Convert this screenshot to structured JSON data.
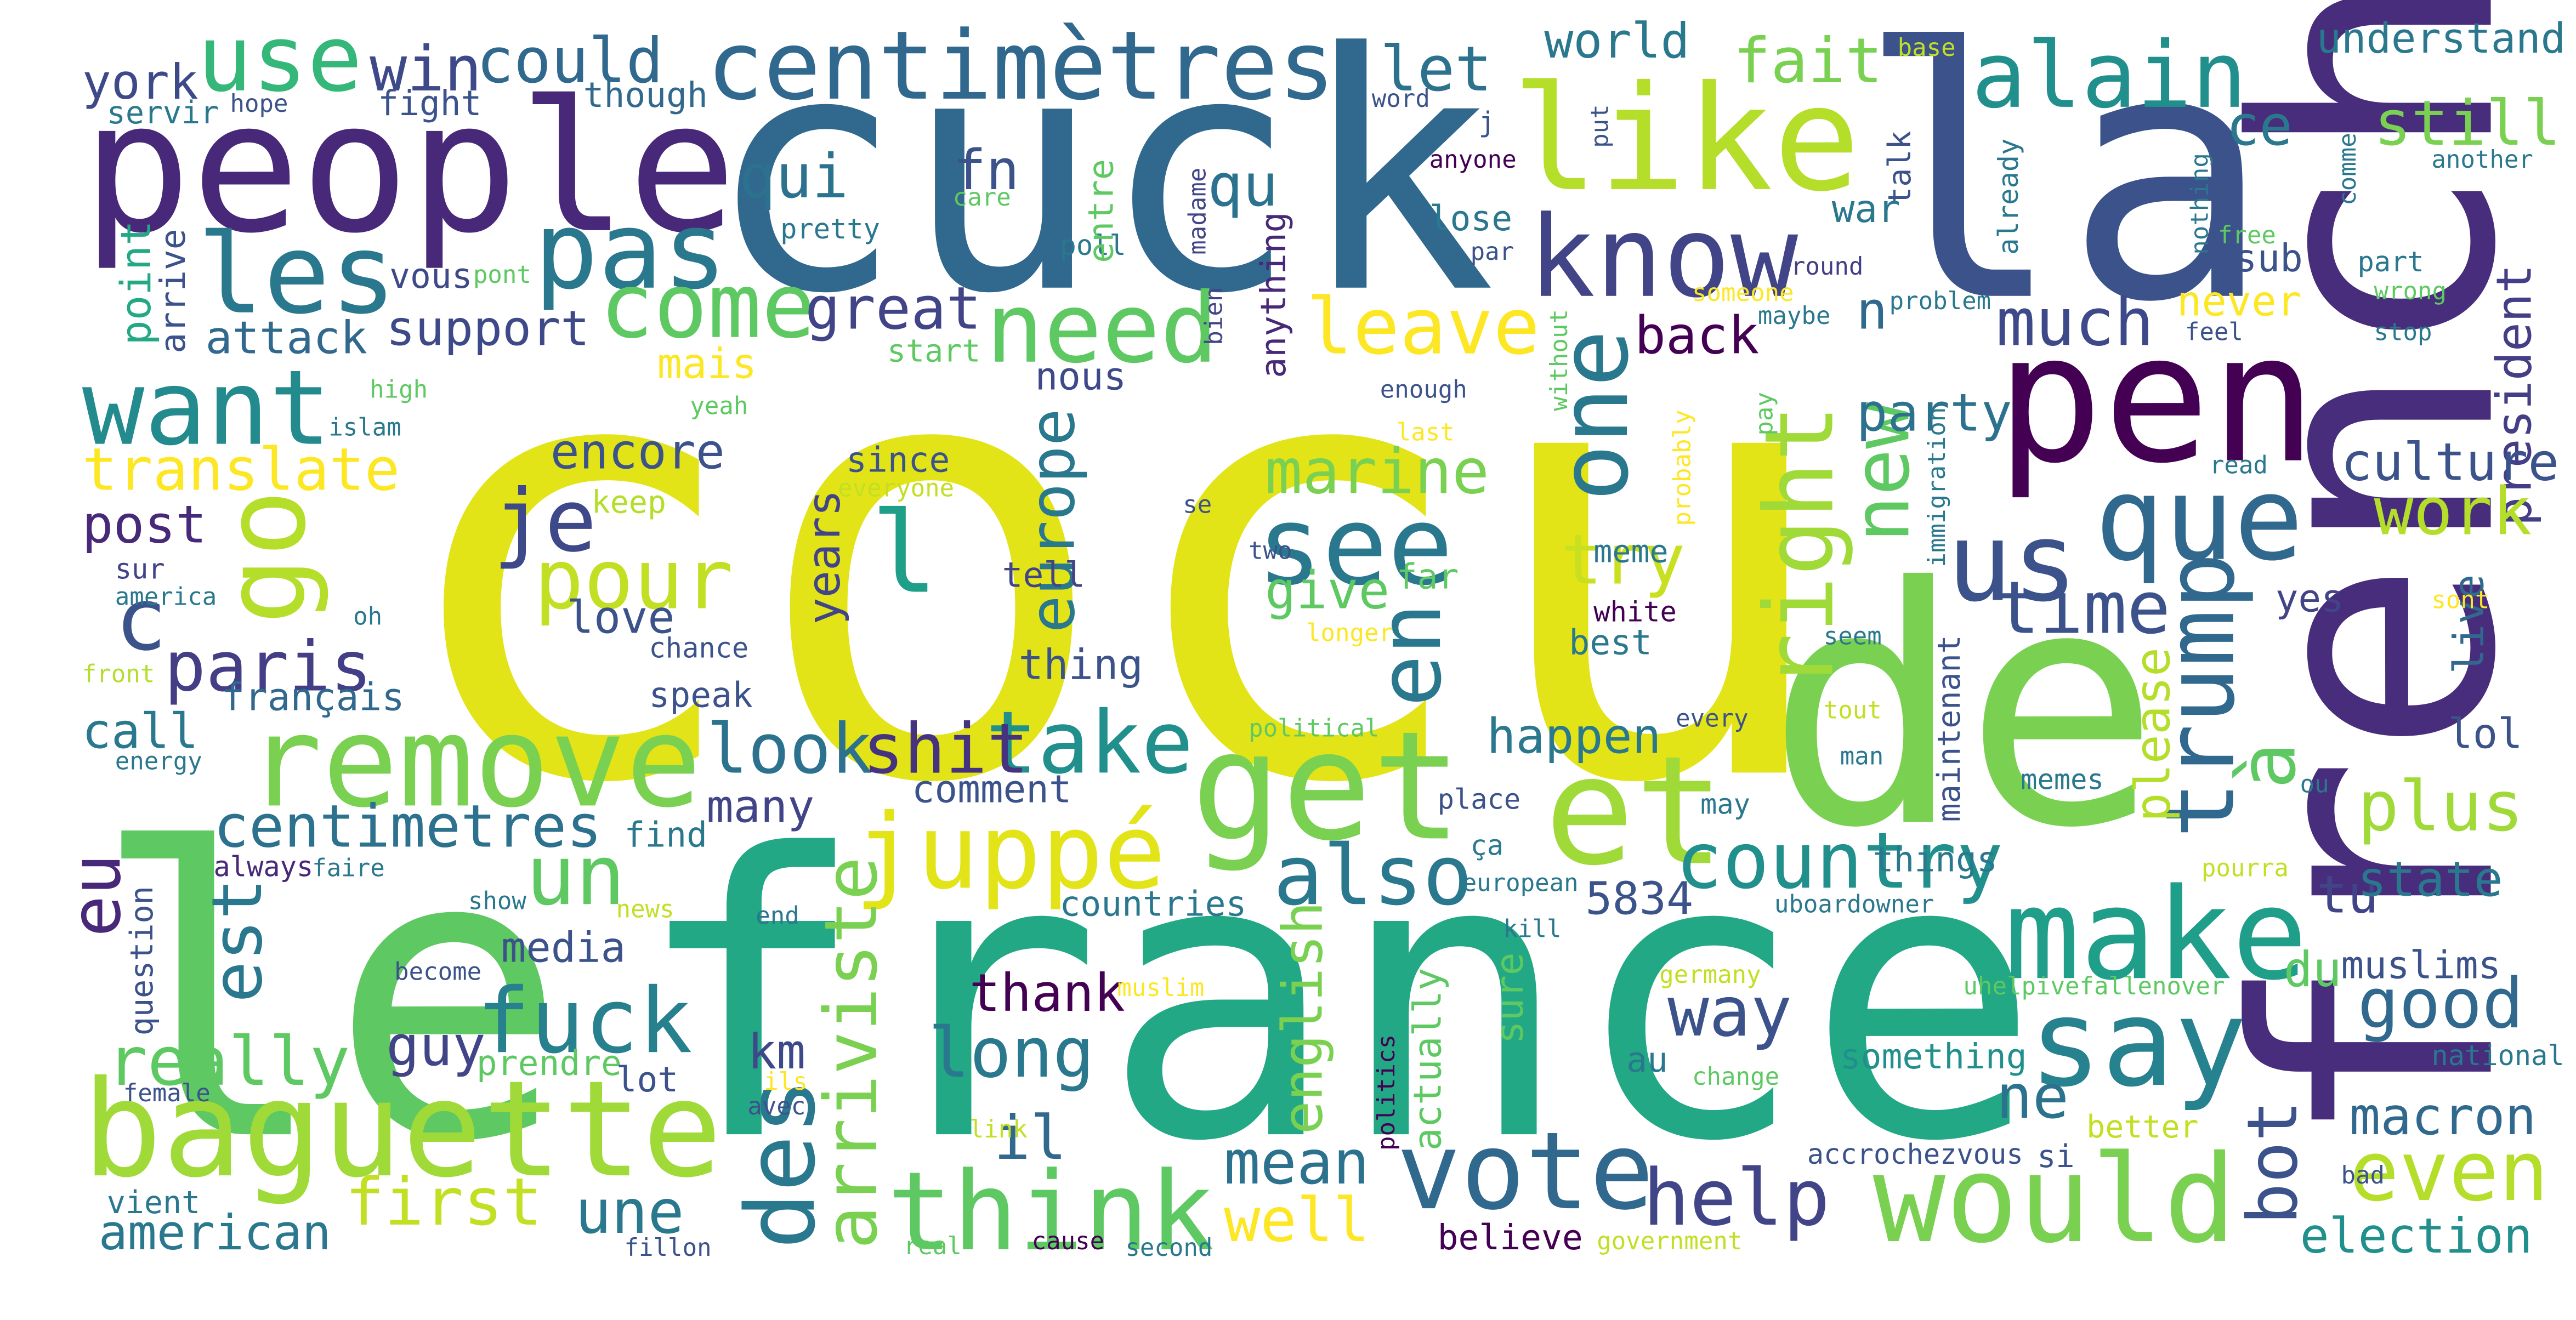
{
  "words": [
    {
      "text": "cocu",
      "color": "#e2e418"
    },
    {
      "text": "france",
      "color": "#22a884"
    },
    {
      "text": "cuck",
      "color": "#31688e"
    },
    {
      "text": "le",
      "color": "#5ec962"
    },
    {
      "text": "la",
      "color": "#3b528b"
    },
    {
      "text": "de",
      "color": "#7ad151"
    },
    {
      "text": "french",
      "color": "#472d7b"
    },
    {
      "text": "people",
      "color": "#482878"
    },
    {
      "text": "like",
      "color": "#b5de2b"
    },
    {
      "text": "pen",
      "color": "#440154"
    },
    {
      "text": "get",
      "color": "#7ad151"
    },
    {
      "text": "et",
      "color": "#a0da39"
    },
    {
      "text": "baguette",
      "color": "#a0da39"
    },
    {
      "text": "remove",
      "color": "#7ad151"
    },
    {
      "text": "think",
      "color": "#5ec962"
    },
    {
      "text": "would",
      "color": "#7ad151"
    },
    {
      "text": "say",
      "color": "#26828e"
    },
    {
      "text": "make",
      "color": "#1f9e89"
    },
    {
      "text": "vote",
      "color": "#31688e"
    },
    {
      "text": "know",
      "color": "#414487"
    },
    {
      "text": "want",
      "color": "#238a8d"
    },
    {
      "text": "les",
      "color": "#2a788e"
    },
    {
      "text": "pas",
      "color": "#2a788e"
    },
    {
      "text": "juppé",
      "color": "#e2e418"
    },
    {
      "text": "fuck",
      "color": "#27808e"
    },
    {
      "text": "use",
      "color": "#35b779"
    },
    {
      "text": "centimètres",
      "color": "#31688e"
    },
    {
      "text": "alain",
      "color": "#21908d"
    },
    {
      "text": "need",
      "color": "#5ec962"
    },
    {
      "text": "come",
      "color": "#5ec962"
    },
    {
      "text": "see",
      "color": "#2a788e"
    },
    {
      "text": "que",
      "color": "#31688e"
    },
    {
      "text": "us",
      "color": "#3b528b"
    },
    {
      "text": "go",
      "color": "#b5de2b"
    },
    {
      "text": "je",
      "color": "#3e4989"
    },
    {
      "text": "pour",
      "color": "#c2df23"
    },
    {
      "text": "l",
      "color": "#1f9e89"
    },
    {
      "text": "c",
      "color": "#3b528b"
    },
    {
      "text": "paris",
      "color": "#433e85"
    },
    {
      "text": "take",
      "color": "#21908d"
    },
    {
      "text": "look",
      "color": "#2c728e"
    },
    {
      "text": "shit",
      "color": "#46337f"
    },
    {
      "text": "one",
      "color": "#2a788e"
    },
    {
      "text": "right",
      "color": "#a0da39"
    },
    {
      "text": "new",
      "color": "#5ec962"
    },
    {
      "text": "en",
      "color": "#2a788e"
    },
    {
      "text": "trump",
      "color": "#31688e"
    },
    {
      "text": "à",
      "color": "#5ec962"
    },
    {
      "text": "des",
      "color": "#2a788e"
    },
    {
      "text": "arriviste",
      "color": "#7ad151"
    },
    {
      "text": "est",
      "color": "#2a788e"
    },
    {
      "text": "eu",
      "color": "#482878"
    },
    {
      "text": "un",
      "color": "#5ec962"
    },
    {
      "text": "also",
      "color": "#2a788e"
    },
    {
      "text": "country",
      "color": "#21908d"
    },
    {
      "text": "plus",
      "color": "#a0da39"
    },
    {
      "text": "good",
      "color": "#31688e"
    },
    {
      "text": "even",
      "color": "#b5de2b"
    },
    {
      "text": "help",
      "color": "#414487"
    },
    {
      "text": "really",
      "color": "#5ec962"
    },
    {
      "text": "long",
      "color": "#2a788e"
    },
    {
      "text": "way",
      "color": "#3b528b"
    },
    {
      "text": "mean",
      "color": "#2c728e"
    },
    {
      "text": "well",
      "color": "#fde725"
    },
    {
      "text": "first",
      "color": "#c2df23"
    },
    {
      "text": "une",
      "color": "#2a788e"
    },
    {
      "text": "american",
      "color": "#2a788e"
    },
    {
      "text": "centimetres",
      "color": "#2c728e"
    },
    {
      "text": "media",
      "color": "#3b528b"
    },
    {
      "text": "guy",
      "color": "#414487"
    },
    {
      "text": "km",
      "color": "#3e4989"
    },
    {
      "text": "il",
      "color": "#31688e"
    },
    {
      "text": "english",
      "color": "#7ad151"
    },
    {
      "text": "thank",
      "color": "#440154"
    },
    {
      "text": "ne",
      "color": "#2c728e"
    },
    {
      "text": "bot",
      "color": "#3b528b"
    },
    {
      "text": "please",
      "color": "#b5de2b"
    },
    {
      "text": "tu",
      "color": "#414487"
    },
    {
      "text": "state",
      "color": "#2a788e"
    },
    {
      "text": "du",
      "color": "#5ec962"
    },
    {
      "text": "muslims",
      "color": "#3b528b"
    },
    {
      "text": "macron",
      "color": "#31688e"
    },
    {
      "text": "election",
      "color": "#21908d"
    },
    {
      "text": "national",
      "color": "#2a788e"
    },
    {
      "text": "lol",
      "color": "#3b528b"
    },
    {
      "text": "live",
      "color": "#31688e"
    },
    {
      "text": "president",
      "color": "#433e85"
    },
    {
      "text": "culture",
      "color": "#3b528b"
    },
    {
      "text": "work",
      "color": "#b5de2b"
    },
    {
      "text": "yes",
      "color": "#414487"
    },
    {
      "text": "sont",
      "color": "#fde725"
    },
    {
      "text": "time",
      "color": "#3b528b"
    },
    {
      "text": "try",
      "color": "#c8e020"
    },
    {
      "text": "marine",
      "color": "#7ad151"
    },
    {
      "text": "give",
      "color": "#5ec962"
    },
    {
      "text": "leave",
      "color": "#fde725"
    },
    {
      "text": "much",
      "color": "#3e4989"
    },
    {
      "text": "back",
      "color": "#440154"
    },
    {
      "text": "n",
      "color": "#31688e"
    },
    {
      "text": "party",
      "color": "#2c728e"
    },
    {
      "text": "never",
      "color": "#fde725"
    },
    {
      "text": "sub",
      "color": "#3b528b"
    },
    {
      "text": "still",
      "color": "#7ad151"
    },
    {
      "text": "ce",
      "color": "#2a788e"
    },
    {
      "text": "fait",
      "color": "#7ad151"
    },
    {
      "text": "let",
      "color": "#2c728e"
    },
    {
      "text": "world",
      "color": "#2a788e"
    },
    {
      "text": "win",
      "color": "#3e4989"
    },
    {
      "text": "could",
      "color": "#31688e"
    },
    {
      "text": "york",
      "color": "#3e4989"
    },
    {
      "text": "servir",
      "color": "#2a788e"
    },
    {
      "text": "hope",
      "color": "#3b528b"
    },
    {
      "text": "fight",
      "color": "#3b528b"
    },
    {
      "text": "though",
      "color": "#31688e"
    },
    {
      "text": "qui",
      "color": "#2c728e"
    },
    {
      "text": "fn",
      "color": "#3b528b"
    },
    {
      "text": "qu",
      "color": "#2c728e"
    },
    {
      "text": "pretty",
      "color": "#2a788e"
    },
    {
      "text": "care",
      "color": "#5ec962"
    },
    {
      "text": "madame",
      "color": "#414487"
    },
    {
      "text": "poll",
      "color": "#2a788e"
    },
    {
      "text": "entre",
      "color": "#5ec962"
    },
    {
      "text": "point",
      "color": "#22a884"
    },
    {
      "text": "arrive",
      "color": "#3b528b"
    },
    {
      "text": "vous",
      "color": "#3e4989"
    },
    {
      "text": "pont",
      "color": "#5ec962"
    },
    {
      "text": "attack",
      "color": "#31688e"
    },
    {
      "text": "support",
      "color": "#3e4989"
    },
    {
      "text": "great",
      "color": "#414487"
    },
    {
      "text": "start",
      "color": "#5ec962"
    },
    {
      "text": "mais",
      "color": "#fde725"
    },
    {
      "text": "bien",
      "color": "#414487"
    },
    {
      "text": "nous",
      "color": "#3e4989"
    },
    {
      "text": "anything",
      "color": "#482878"
    },
    {
      "text": "encore",
      "color": "#3b528b"
    },
    {
      "text": "translate",
      "color": "#fde725"
    },
    {
      "text": "post",
      "color": "#482878"
    },
    {
      "text": "keep",
      "color": "#b5de2b"
    },
    {
      "text": "since",
      "color": "#3b528b"
    },
    {
      "text": "everyone",
      "color": "#c2df23"
    },
    {
      "text": "europe",
      "color": "#2a788e"
    },
    {
      "text": "years",
      "color": "#414487"
    },
    {
      "text": "tell",
      "color": "#414487"
    },
    {
      "text": "se",
      "color": "#3b528b"
    },
    {
      "text": "two",
      "color": "#3b528b"
    },
    {
      "text": "meme",
      "color": "#2a788e"
    },
    {
      "text": "far",
      "color": "#5ec962"
    },
    {
      "text": "white",
      "color": "#440154"
    },
    {
      "text": "longer",
      "color": "#fde725"
    },
    {
      "text": "best",
      "color": "#2a788e"
    },
    {
      "text": "thing",
      "color": "#3b528b"
    },
    {
      "text": "love",
      "color": "#3b528b"
    },
    {
      "text": "chance",
      "color": "#3b528b"
    },
    {
      "text": "speak",
      "color": "#3b528b"
    },
    {
      "text": "français",
      "color": "#31688e"
    },
    {
      "text": "call",
      "color": "#2a788e"
    },
    {
      "text": "energy",
      "color": "#2a788e"
    },
    {
      "text": "sur",
      "color": "#414487"
    },
    {
      "text": "america",
      "color": "#2a788e"
    },
    {
      "text": "oh",
      "color": "#2a788e"
    },
    {
      "text": "front",
      "color": "#b5de2b"
    },
    {
      "text": "islam",
      "color": "#2a788e"
    },
    {
      "text": "high",
      "color": "#5ec962"
    },
    {
      "text": "yeah",
      "color": "#5ec962"
    },
    {
      "text": "happen",
      "color": "#2a788e"
    },
    {
      "text": "many",
      "color": "#414487"
    },
    {
      "text": "comment",
      "color": "#3b528b"
    },
    {
      "text": "political",
      "color": "#5ec962"
    },
    {
      "text": "every",
      "color": "#3b528b"
    },
    {
      "text": "man",
      "color": "#2a788e"
    },
    {
      "text": "tout",
      "color": "#c2df23"
    },
    {
      "text": "maintenant",
      "color": "#3b528b"
    },
    {
      "text": "memes",
      "color": "#2a788e"
    },
    {
      "text": "ou",
      "color": "#2a788e"
    },
    {
      "text": "seem",
      "color": "#2a788e"
    },
    {
      "text": "immigration",
      "color": "#2a788e"
    },
    {
      "text": "probably",
      "color": "#fde725"
    },
    {
      "text": "pay",
      "color": "#5ec962"
    },
    {
      "text": "enough",
      "color": "#3b528b"
    },
    {
      "text": "last",
      "color": "#fde725"
    },
    {
      "text": "without",
      "color": "#5ec962"
    },
    {
      "text": "someone",
      "color": "#fde725"
    },
    {
      "text": "maybe",
      "color": "#2a788e"
    },
    {
      "text": "problem",
      "color": "#2a788e"
    },
    {
      "text": "round",
      "color": "#433e85"
    },
    {
      "text": "talk",
      "color": "#3b528b"
    },
    {
      "text": "war",
      "color": "#2a788e"
    },
    {
      "text": "already",
      "color": "#2a788e"
    },
    {
      "text": "nothing",
      "color": "#2a788e"
    },
    {
      "text": "free",
      "color": "#5ec962"
    },
    {
      "text": "part",
      "color": "#2a788e"
    },
    {
      "text": "wrong",
      "color": "#5ec962"
    },
    {
      "text": "feel",
      "color": "#3b528b"
    },
    {
      "text": "stop",
      "color": "#2a788e"
    },
    {
      "text": "comme",
      "color": "#2a788e"
    },
    {
      "text": "another",
      "color": "#2a788e"
    },
    {
      "text": "understand",
      "color": "#2a788e"
    },
    {
      "text": "base",
      "color": "#c2df23"
    },
    {
      "text": "word",
      "color": "#3b528b"
    },
    {
      "text": "j",
      "color": "#3b528b"
    },
    {
      "text": "put",
      "color": "#3b528b"
    },
    {
      "text": "anyone",
      "color": "#440154"
    },
    {
      "text": "lose",
      "color": "#2a788e"
    },
    {
      "text": "par",
      "color": "#3b528b"
    },
    {
      "text": "read",
      "color": "#2a788e"
    },
    {
      "text": "5834",
      "color": "#3b528b"
    },
    {
      "text": "place",
      "color": "#3b528b"
    },
    {
      "text": "may",
      "color": "#2a788e"
    },
    {
      "text": "ça",
      "color": "#2a788e"
    },
    {
      "text": "european",
      "color": "#2a788e"
    },
    {
      "text": "find",
      "color": "#2a788e"
    },
    {
      "text": "faire",
      "color": "#2a788e"
    },
    {
      "text": "always",
      "color": "#482878"
    },
    {
      "text": "show",
      "color": "#2a788e"
    },
    {
      "text": "news",
      "color": "#c2df23"
    },
    {
      "text": "question",
      "color": "#3b528b"
    },
    {
      "text": "countries",
      "color": "#2a788e"
    },
    {
      "text": "end",
      "color": "#2a788e"
    },
    {
      "text": "kill",
      "color": "#2a788e"
    },
    {
      "text": "things",
      "color": "#2a788e"
    },
    {
      "text": "uboardowner",
      "color": "#2a788e"
    },
    {
      "text": "pourra",
      "color": "#c2df23"
    },
    {
      "text": "become",
      "color": "#3b528b"
    },
    {
      "text": "germany",
      "color": "#c2df23"
    },
    {
      "text": "sure",
      "color": "#5ec962"
    },
    {
      "text": "actually",
      "color": "#5ec962"
    },
    {
      "text": "politics",
      "color": "#440154"
    },
    {
      "text": "muslim",
      "color": "#fde725"
    },
    {
      "text": "uhelpivefallenover",
      "color": "#5ec962"
    },
    {
      "text": "female",
      "color": "#3b528b"
    },
    {
      "text": "prendre",
      "color": "#5ec962"
    },
    {
      "text": "lot",
      "color": "#3b528b"
    },
    {
      "text": "ils",
      "color": "#fde725"
    },
    {
      "text": "avec",
      "color": "#3b528b"
    },
    {
      "text": "au",
      "color": "#2a788e"
    },
    {
      "text": "change",
      "color": "#5ec962"
    },
    {
      "text": "something",
      "color": "#21908d"
    },
    {
      "text": "link",
      "color": "#c2df23"
    },
    {
      "text": "better",
      "color": "#c2df23"
    },
    {
      "text": "accrochezvous",
      "color": "#3b528b"
    },
    {
      "text": "si",
      "color": "#3b528b"
    },
    {
      "text": "bad",
      "color": "#3b528b"
    },
    {
      "text": "vient",
      "color": "#2a788e"
    },
    {
      "text": "fillon",
      "color": "#3b528b"
    },
    {
      "text": "real",
      "color": "#5ec962"
    },
    {
      "text": "cause",
      "color": "#440154"
    },
    {
      "text": "second",
      "color": "#2a788e"
    },
    {
      "text": "believe",
      "color": "#440154"
    },
    {
      "text": "government",
      "color": "#c2df23"
    }
  ]
}
